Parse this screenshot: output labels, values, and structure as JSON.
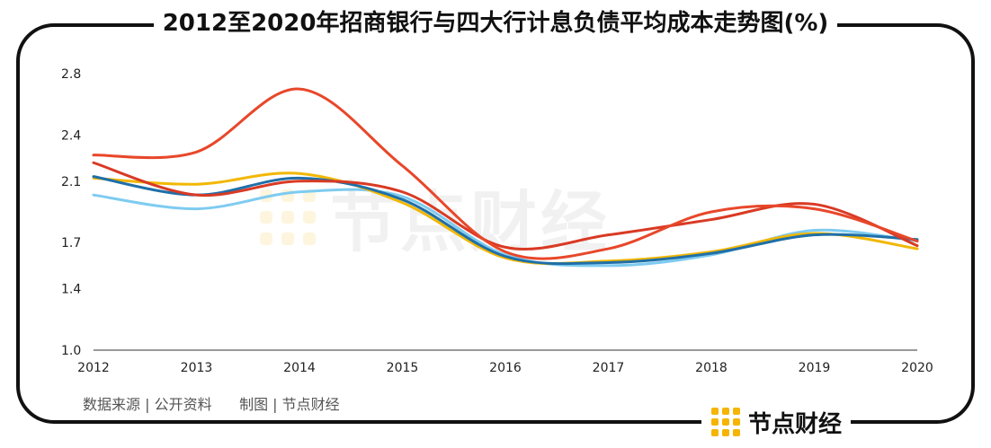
{
  "title": "2012至2020年招商银行与四大行计息负债平均成本走势图(%)",
  "footer": {
    "source_label": "数据来源 | 公开资料",
    "maker_label": "制图 | 节点财经"
  },
  "brand": {
    "name": "节点财经",
    "watermark_text": "节点财经",
    "accent": "#f5b400"
  },
  "chart_data": {
    "type": "line",
    "x": [
      "2012",
      "2013",
      "2014",
      "2015",
      "2016",
      "2017",
      "2018",
      "2019",
      "2020"
    ],
    "yticks": [
      "1.0",
      "1.4",
      "1.7",
      "2.1",
      "2.4",
      "2.8"
    ],
    "ylim": [
      1.0,
      2.8
    ],
    "grid": false,
    "legend": "none",
    "series": [
      {
        "color": "#e8472a",
        "values": [
          2.27,
          2.29,
          2.7,
          2.2,
          1.64,
          1.66,
          1.9,
          1.92,
          1.71
        ]
      },
      {
        "color": "#d93a24",
        "values": [
          2.22,
          2.01,
          2.1,
          2.03,
          1.67,
          1.75,
          1.85,
          1.95,
          1.68
        ]
      },
      {
        "color": "#1f6fa8",
        "values": [
          2.13,
          2.01,
          2.12,
          1.98,
          1.61,
          1.57,
          1.63,
          1.75,
          1.72
        ]
      },
      {
        "color": "#f2b705",
        "values": [
          2.12,
          2.08,
          2.15,
          1.96,
          1.6,
          1.58,
          1.64,
          1.76,
          1.66
        ]
      },
      {
        "color": "#7ecbf0",
        "values": [
          2.01,
          1.92,
          2.03,
          2.0,
          1.62,
          1.55,
          1.62,
          1.78,
          1.71
        ]
      }
    ]
  }
}
